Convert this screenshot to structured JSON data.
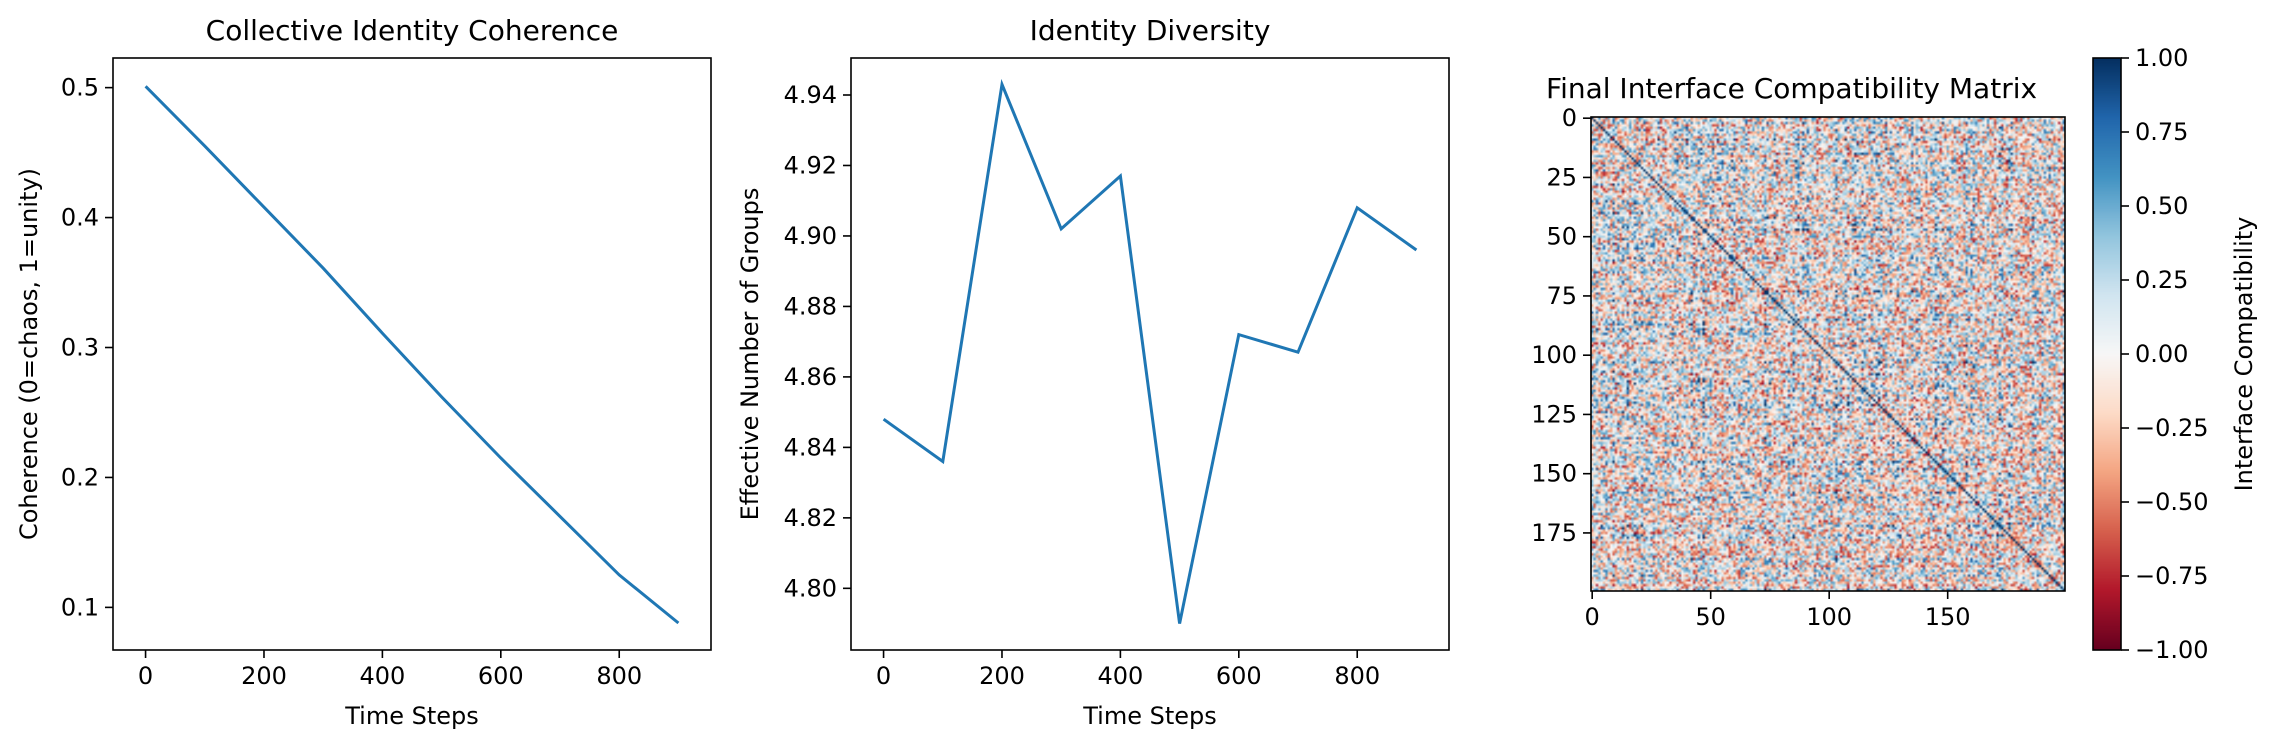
{
  "chart_data": [
    {
      "type": "line",
      "title": "Collective Identity Coherence",
      "xlabel": "Time Steps",
      "ylabel": "Coherence (0=chaos, 1=unity)",
      "xlim": [
        -55,
        955
      ],
      "ylim": [
        0.0672,
        0.5228
      ],
      "xticks": [
        "0",
        "200",
        "400",
        "600",
        "800"
      ],
      "yticks": [
        "0.1",
        "0.2",
        "0.3",
        "0.4",
        "0.5"
      ],
      "grid": false,
      "series": [
        {
          "color": "#1f77b4",
          "x": [
            0,
            100,
            200,
            300,
            400,
            500,
            600,
            700,
            800,
            900
          ],
          "y": [
            0.501,
            0.455,
            0.408,
            0.361,
            0.311,
            0.262,
            0.215,
            0.17,
            0.125,
            0.088
          ]
        }
      ]
    },
    {
      "type": "line",
      "title": "Identity Diversity",
      "xlabel": "Time Steps",
      "ylabel": "Effective Number of Groups",
      "xlim": [
        -55,
        955
      ],
      "ylim": [
        4.7825,
        4.9505
      ],
      "xticks": [
        "0",
        "200",
        "400",
        "600",
        "800"
      ],
      "yticks": [
        "4.80",
        "4.82",
        "4.84",
        "4.86",
        "4.88",
        "4.90",
        "4.92",
        "4.94"
      ],
      "grid": false,
      "series": [
        {
          "color": "#1f77b4",
          "x": [
            0,
            100,
            200,
            300,
            400,
            500,
            600,
            700,
            800,
            900
          ],
          "y": [
            4.848,
            4.836,
            4.943,
            4.902,
            4.917,
            4.79,
            4.872,
            4.867,
            4.908,
            4.896
          ]
        }
      ]
    },
    {
      "type": "heatmap",
      "title": "Final Interface Compatibility Matrix",
      "size": 200,
      "xticks": [
        "0",
        "50",
        "100",
        "150"
      ],
      "yticks": [
        "0",
        "25",
        "50",
        "75",
        "100",
        "125",
        "150",
        "175"
      ],
      "colormap": "RdBu",
      "vmin": -1.0,
      "vmax": 1.0,
      "diagonal_value": 1.0,
      "colorbar": {
        "label": "Interface Compatibility",
        "ticks": [
          "1.00",
          "0.75",
          "0.50",
          "0.25",
          "0.00",
          "−0.25",
          "−0.50",
          "−0.75",
          "−1.00"
        ]
      }
    }
  ]
}
